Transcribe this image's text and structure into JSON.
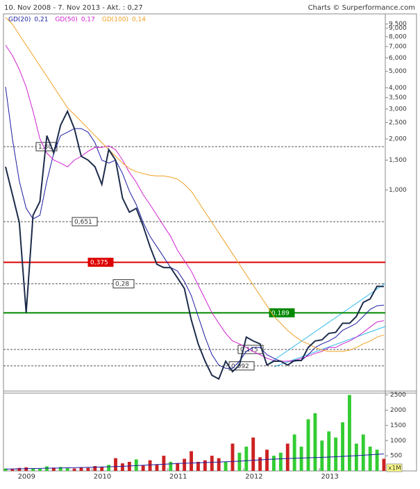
{
  "chart_data": {
    "type": "line",
    "title": "10. Nov 2008 - 7. Nov 2013 - Akt. : 0,27",
    "source": "Charts © Surperformance.com",
    "log_scale": true,
    "xlim": [
      2008.86,
      2013.85
    ],
    "xticks": [
      2009,
      2010,
      2011,
      2012,
      2013
    ],
    "ylim": [
      0.066,
      10.9
    ],
    "yticks": [
      {
        "value": 9.5,
        "label": "9,500"
      },
      {
        "value": 9,
        "label": "9,000"
      },
      {
        "value": 8,
        "label": "8,000"
      },
      {
        "value": 7,
        "label": "7,000"
      },
      {
        "value": 6,
        "label": "6,000"
      },
      {
        "value": 5,
        "label": "5,000"
      },
      {
        "value": 4,
        "label": "4,000"
      },
      {
        "value": 3.5,
        "label": "3,500"
      },
      {
        "value": 3,
        "label": "3,000"
      },
      {
        "value": 2.5,
        "label": "2,500"
      },
      {
        "value": 2,
        "label": "2,000"
      },
      {
        "value": 1.5,
        "label": "1,500"
      },
      {
        "value": 1,
        "label": "1,000"
      }
    ],
    "price": {
      "color": "#1c2b4a",
      "values": [
        1.37,
        0.94,
        0.644,
        0.189,
        0.71,
        0.855,
        2.09,
        1.65,
        2.41,
        2.91,
        2.3,
        1.58,
        1.5,
        1.37,
        1.08,
        1.73,
        1.5,
        0.896,
        0.74,
        0.78,
        0.614,
        0.463,
        0.365,
        0.349,
        0.349,
        0.303,
        0.263,
        0.172,
        0.124,
        0.098,
        0.081,
        0.077,
        0.098,
        0.085,
        0.093,
        0.136,
        0.129,
        0.124,
        0.093,
        0.098,
        0.098,
        0.093,
        0.099,
        0.099,
        0.118,
        0.129,
        0.131,
        0.143,
        0.145,
        0.164,
        0.164,
        0.18,
        0.218,
        0.228,
        0.271,
        0.27
      ]
    },
    "series": [
      {
        "name": "GD(20)",
        "color": "#1a1aa0",
        "value_label": "0,21",
        "values": [
          4.05,
          2.0,
          1.13,
          0.78,
          0.675,
          0.71,
          1.13,
          1.65,
          2.09,
          2.19,
          2.3,
          2.3,
          2.19,
          1.9,
          1.5,
          1.44,
          1.5,
          1.25,
          0.984,
          0.82,
          0.644,
          0.533,
          0.463,
          0.402,
          0.349,
          0.333,
          0.289,
          0.239,
          0.18,
          0.136,
          0.107,
          0.093,
          0.089,
          0.089,
          0.098,
          0.112,
          0.118,
          0.118,
          0.107,
          0.102,
          0.098,
          0.098,
          0.098,
          0.099,
          0.107,
          0.118,
          0.124,
          0.129,
          0.136,
          0.149,
          0.156,
          0.164,
          0.18,
          0.198,
          0.208,
          0.21
        ]
      },
      {
        "name": "GD(50)",
        "color": "#d020d0",
        "value_label": "0,17",
        "values": [
          7.13,
          6.2,
          5.13,
          4.05,
          2.91,
          2.0,
          1.65,
          1.5,
          1.44,
          1.37,
          1.5,
          1.58,
          1.69,
          1.78,
          1.78,
          1.82,
          1.73,
          1.5,
          1.27,
          1.11,
          0.94,
          0.82,
          0.71,
          0.614,
          0.533,
          0.441,
          0.383,
          0.333,
          0.275,
          0.228,
          0.189,
          0.164,
          0.143,
          0.129,
          0.124,
          0.118,
          0.112,
          0.107,
          0.102,
          0.099,
          0.098,
          0.098,
          0.099,
          0.102,
          0.105,
          0.109,
          0.112,
          0.118,
          0.118,
          0.124,
          0.129,
          0.136,
          0.145,
          0.156,
          0.167,
          0.17
        ]
      },
      {
        "name": "GD(100)",
        "color": "#f0a020",
        "value_label": "0,14",
        "values": [
          10.4,
          9.47,
          8.22,
          7.13,
          6.2,
          5.38,
          4.67,
          4.05,
          3.52,
          3.05,
          2.78,
          2.53,
          2.3,
          2.09,
          1.9,
          1.73,
          1.58,
          1.44,
          1.34,
          1.28,
          1.25,
          1.22,
          1.21,
          1.21,
          1.19,
          1.16,
          1.08,
          0.984,
          0.855,
          0.74,
          0.644,
          0.558,
          0.485,
          0.421,
          0.365,
          0.317,
          0.275,
          0.239,
          0.208,
          0.18,
          0.164,
          0.149,
          0.138,
          0.129,
          0.124,
          0.118,
          0.114,
          0.112,
          0.112,
          0.112,
          0.114,
          0.118,
          0.124,
          0.129,
          0.136,
          0.14
        ]
      }
    ],
    "levels": [
      {
        "value": 1.8,
        "label": "1,80",
        "color": "#555555",
        "dashed": true
      },
      {
        "value": 0.651,
        "label": "0,651",
        "color": "#555555",
        "dashed": true
      },
      {
        "value": 0.375,
        "label": "0,375",
        "color": "#dd0000",
        "dashed": false
      },
      {
        "value": 0.28,
        "label": "0,28",
        "color": "#555555",
        "dashed": true
      },
      {
        "value": 0.189,
        "label": "0,189",
        "color": "#008800",
        "dashed": false
      },
      {
        "value": 0.115,
        "label": "0,115",
        "color": "#555555",
        "dashed": true
      },
      {
        "value": 0.092,
        "label": "0,092",
        "color": "#555555",
        "dashed": true
      }
    ],
    "volume": {
      "unit": "x1M",
      "up_color": "#33cc33",
      "down_color": "#cc2222",
      "ylim": [
        0,
        2560
      ],
      "yticks": [
        500,
        1000,
        1500,
        2000,
        2500
      ],
      "values": [
        80,
        60,
        100,
        120,
        90,
        70,
        150,
        110,
        130,
        90,
        80,
        120,
        100,
        160,
        140,
        200,
        420,
        250,
        300,
        380,
        180,
        350,
        220,
        500,
        300,
        260,
        400,
        650,
        300,
        350,
        500,
        420,
        300,
        900,
        600,
        800,
        1100,
        450,
        700,
        500,
        600,
        900,
        1200,
        800,
        1700,
        1900,
        1000,
        1300,
        1100,
        1600,
        2500,
        900,
        1200,
        800,
        700,
        400
      ],
      "average": {
        "color": "#1a1aa0",
        "values": [
          60,
          80,
          100,
          120,
          150,
          200,
          250,
          280,
          320,
          380,
          420,
          450,
          500,
          560
        ]
      }
    }
  }
}
